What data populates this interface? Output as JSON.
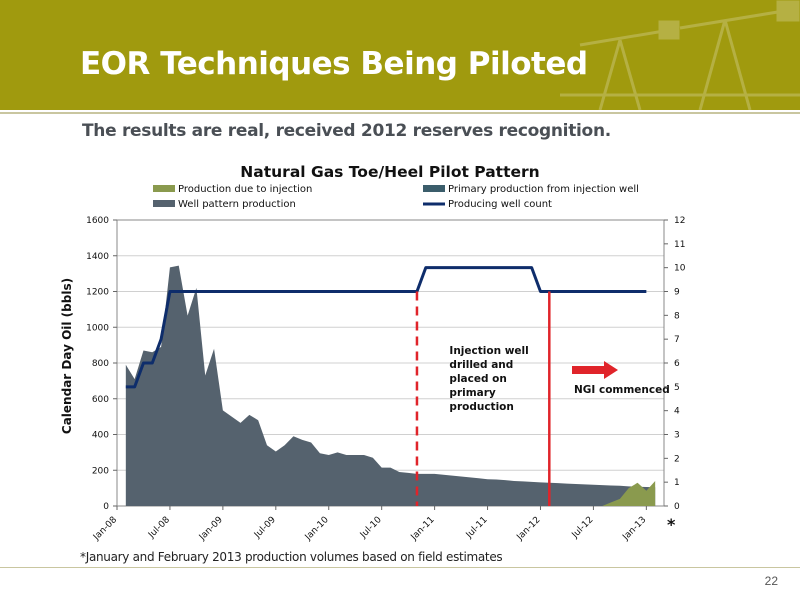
{
  "slide": {
    "title": "EOR Techniques Being Piloted",
    "subtitle": "The results are real, received 2012 reserves recognition.",
    "footnote": "*January and February 2013 production volumes based on field estimates",
    "page_number": "22"
  },
  "colors": {
    "header_bg": "#a09a0e",
    "well_pattern": "#55626e",
    "primary_injection": "#3b5d6b",
    "due_to_injection": "#8a9a4e",
    "well_count": "#0e2d6b",
    "marker": "#e0242a"
  },
  "chart_data": {
    "type": "area",
    "title": "Natural Gas Toe/Heel Pilot Pattern",
    "ylabel": "Calendar Day Oil (bbls)",
    "ylim": [
      0,
      1600
    ],
    "y_ticks": [
      "0",
      "200",
      "400",
      "600",
      "800",
      "1000",
      "1200",
      "1400",
      "1600"
    ],
    "y2lim": [
      0,
      12
    ],
    "y2_ticks": [
      "0",
      "1",
      "2",
      "3",
      "4",
      "5",
      "6",
      "7",
      "8",
      "9",
      "10",
      "11",
      "12"
    ],
    "x_ticks": [
      "Jan-08",
      "Jul-08",
      "Jan-09",
      "Jul-09",
      "Jan-10",
      "Jul-10",
      "Jan-11",
      "Jul-11",
      "Jan-12",
      "Jul-12",
      "Jan-13"
    ],
    "x_start": "Jan-08",
    "x": [
      "Feb-08",
      "Mar-08",
      "Apr-08",
      "May-08",
      "Jun-08",
      "Jul-08",
      "Aug-08",
      "Sep-08",
      "Oct-08",
      "Nov-08",
      "Dec-08",
      "Jan-09",
      "Feb-09",
      "Mar-09",
      "Apr-09",
      "May-09",
      "Jun-09",
      "Jul-09",
      "Aug-09",
      "Sep-09",
      "Oct-09",
      "Nov-09",
      "Dec-09",
      "Jan-10",
      "Feb-10",
      "Mar-10",
      "Apr-10",
      "May-10",
      "Jun-10",
      "Jul-10",
      "Aug-10",
      "Sep-10",
      "Oct-10",
      "Nov-10",
      "Dec-10",
      "Jan-11",
      "Feb-11",
      "Mar-11",
      "Apr-11",
      "May-11",
      "Jun-11",
      "Jul-11",
      "Aug-11",
      "Sep-11",
      "Oct-11",
      "Nov-11",
      "Dec-11",
      "Jan-12",
      "Feb-12",
      "Mar-12",
      "Apr-12",
      "May-12",
      "Jun-12",
      "Jul-12",
      "Aug-12",
      "Sep-12",
      "Oct-12",
      "Nov-12",
      "Dec-12",
      "Jan-13",
      "Feb-13"
    ],
    "series": [
      {
        "name": "Production due to injection",
        "kind": "area",
        "color": "#8a9a4e",
        "values": [
          null,
          null,
          null,
          null,
          null,
          null,
          null,
          null,
          null,
          null,
          null,
          null,
          null,
          null,
          null,
          null,
          null,
          null,
          null,
          null,
          null,
          null,
          null,
          null,
          null,
          null,
          null,
          null,
          null,
          null,
          null,
          null,
          null,
          null,
          null,
          null,
          null,
          null,
          null,
          null,
          null,
          null,
          null,
          null,
          null,
          null,
          null,
          null,
          null,
          null,
          null,
          null,
          null,
          null,
          0,
          20,
          40,
          100,
          130,
          85,
          140
        ]
      },
      {
        "name": "Primary production from injection well",
        "kind": "area",
        "color": "#3b5d6b",
        "values": [
          null,
          null,
          null,
          null,
          null,
          null,
          null,
          null,
          null,
          null,
          null,
          null,
          null,
          null,
          null,
          null,
          null,
          null,
          null,
          null,
          null,
          null,
          null,
          null,
          null,
          null,
          null,
          null,
          null,
          null,
          null,
          null,
          null,
          0,
          20,
          140,
          130,
          125,
          110,
          0,
          0,
          40,
          25,
          25,
          20,
          65,
          65,
          0,
          null,
          null,
          null,
          null,
          null,
          null,
          null,
          null,
          null,
          null,
          null,
          null,
          null
        ]
      },
      {
        "name": "Well pattern production",
        "kind": "area",
        "color": "#55626e",
        "values": [
          790,
          710,
          870,
          860,
          890,
          1335,
          1345,
          1065,
          1220,
          730,
          880,
          535,
          500,
          465,
          510,
          480,
          340,
          305,
          340,
          390,
          370,
          355,
          295,
          285,
          300,
          285,
          285,
          285,
          270,
          215,
          215,
          190,
          185,
          180,
          180,
          180,
          175,
          170,
          165,
          160,
          155,
          150,
          148,
          145,
          140,
          138,
          135,
          132,
          130,
          128,
          125,
          123,
          121,
          119,
          117,
          115,
          113,
          110,
          108,
          106,
          105
        ]
      },
      {
        "name": "Producing well count",
        "kind": "line",
        "axis": "right",
        "color": "#0e2d6b",
        "values": [
          5,
          5,
          6,
          6,
          7,
          9,
          9,
          9,
          9,
          9,
          9,
          9,
          9,
          9,
          9,
          9,
          9,
          9,
          9,
          9,
          9,
          9,
          9,
          9,
          9,
          9,
          9,
          9,
          9,
          9,
          9,
          9,
          9,
          9,
          10,
          10,
          10,
          10,
          10,
          10,
          10,
          10,
          10,
          10,
          10,
          10,
          10,
          9,
          9,
          9,
          9,
          9,
          9,
          9,
          9,
          9,
          9,
          9,
          9,
          9,
          null
        ]
      }
    ],
    "markers": [
      {
        "label": "Injection well drilled and placed on primary production",
        "lines": [
          "Injection well",
          "drilled and",
          "placed on",
          "primary",
          "production"
        ],
        "at": "Nov-10",
        "style": "dashed",
        "color": "#e0242a"
      },
      {
        "label": "NGI commenced",
        "at": "Feb-12",
        "style": "solid",
        "color": "#e0242a"
      }
    ],
    "asterisk": "*",
    "legend_position": "top",
    "grid": true
  }
}
